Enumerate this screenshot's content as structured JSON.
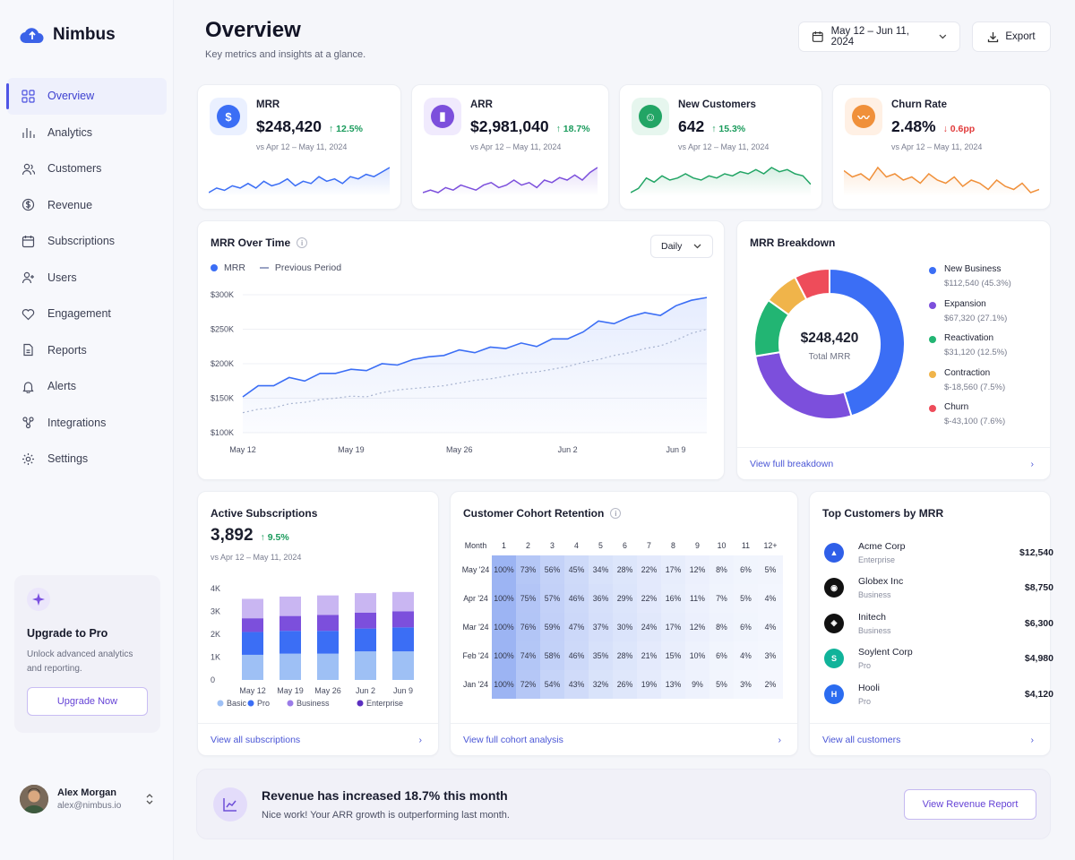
{
  "app": {
    "name": "Nimbus"
  },
  "sidebar": {
    "items": [
      {
        "label": "Overview",
        "icon": "grid-icon"
      },
      {
        "label": "Analytics",
        "icon": "bar-chart-icon"
      },
      {
        "label": "Customers",
        "icon": "users-icon"
      },
      {
        "label": "Revenue",
        "icon": "dollar-circle-icon"
      },
      {
        "label": "Subscriptions",
        "icon": "calendar-icon"
      },
      {
        "label": "Users",
        "icon": "user-plus-icon"
      },
      {
        "label": "Engagement",
        "icon": "heart-icon"
      },
      {
        "label": "Reports",
        "icon": "document-icon"
      },
      {
        "label": "Alerts",
        "icon": "bell-icon"
      },
      {
        "label": "Integrations",
        "icon": "nodes-icon"
      },
      {
        "label": "Settings",
        "icon": "gear-icon"
      }
    ],
    "active": "Overview"
  },
  "upgrade": {
    "title": "Upgrade to Pro",
    "desc": "Unlock advanced analytics and reporting.",
    "button": "Upgrade Now"
  },
  "user": {
    "name": "Alex Morgan",
    "email": "alex@nimbus.io"
  },
  "header": {
    "title": "Overview",
    "subtitle": "Key metrics and insights at a glance.",
    "date_range": "May 12 – Jun 11, 2024",
    "export": "Export"
  },
  "kpis": [
    {
      "label": "MRR",
      "value": "$248,420",
      "delta": "12.5%",
      "direction": "up",
      "period": "vs Apr 12 – May 11, 2024",
      "color": "#3b6ef5",
      "spark": [
        10,
        12,
        11,
        13,
        12,
        14,
        12,
        15,
        13,
        14,
        16,
        13,
        15,
        14,
        17,
        15,
        16,
        14,
        17,
        16,
        18,
        17,
        19,
        21
      ]
    },
    {
      "label": "ARR",
      "value": "$2,981,040",
      "delta": "18.7%",
      "direction": "up",
      "period": "vs Apr 12 – May 11, 2024",
      "color": "#7c4fdc",
      "spark": [
        12,
        13,
        12,
        14,
        13,
        15,
        14,
        13,
        15,
        16,
        14,
        15,
        17,
        15,
        16,
        14,
        17,
        16,
        18,
        17,
        19,
        17,
        20,
        22
      ]
    },
    {
      "label": "New Customers",
      "value": "642",
      "delta": "15.3%",
      "direction": "up",
      "period": "vs Apr 12 – May 11, 2024",
      "color": "#22a565",
      "spark": [
        8,
        10,
        15,
        13,
        16,
        14,
        15,
        17,
        15,
        14,
        16,
        15,
        17,
        16,
        18,
        17,
        19,
        17,
        20,
        18,
        19,
        17,
        16,
        12
      ]
    },
    {
      "label": "Churn Rate",
      "value": "2.48%",
      "delta": "0.6pp",
      "direction": "down",
      "period": "vs Apr 12 – May 11, 2024",
      "color": "#f0903a",
      "spark": [
        18,
        16,
        17,
        15,
        19,
        16,
        17,
        15,
        16,
        14,
        17,
        15,
        14,
        16,
        13,
        15,
        14,
        12,
        15,
        13,
        12,
        14,
        11,
        12
      ]
    }
  ],
  "mrr_time": {
    "title": "MRR Over Time",
    "filter": "Daily",
    "legend": [
      "MRR",
      "Previous Period"
    ]
  },
  "mrr_breakdown": {
    "title": "MRR Breakdown",
    "total": "$248,420",
    "total_label": "Total MRR",
    "items": [
      {
        "name": "New Business",
        "value": "$112,540 (45.3%)",
        "color": "#3b6ef5"
      },
      {
        "name": "Expansion",
        "value": "$67,320 (27.1%)",
        "color": "#7c4fdc"
      },
      {
        "name": "Reactivation",
        "value": "$31,120 (12.5%)",
        "color": "#22b573"
      },
      {
        "name": "Contraction",
        "value": "$-18,560 (7.5%)",
        "color": "#f0b44a"
      },
      {
        "name": "Churn",
        "value": "$-43,100 (7.6%)",
        "color": "#ee4c5a"
      }
    ],
    "link": "View full breakdown"
  },
  "subscriptions": {
    "title": "Active Subscriptions",
    "value": "3,892",
    "delta": "9.5%",
    "period": "vs Apr 12 – May 11, 2024",
    "link": "View all subscriptions"
  },
  "cohort": {
    "title": "Customer Cohort Retention",
    "header": [
      "Month",
      "1",
      "2",
      "3",
      "4",
      "5",
      "6",
      "7",
      "8",
      "9",
      "10",
      "11",
      "12+"
    ],
    "rows": [
      [
        "May '24",
        "100%",
        "73%",
        "56%",
        "45%",
        "34%",
        "28%",
        "22%",
        "17%",
        "12%",
        "8%",
        "6%",
        "5%"
      ],
      [
        "Apr '24",
        "100%",
        "75%",
        "57%",
        "46%",
        "36%",
        "29%",
        "22%",
        "16%",
        "11%",
        "7%",
        "5%",
        "4%"
      ],
      [
        "Mar '24",
        "100%",
        "76%",
        "59%",
        "47%",
        "37%",
        "30%",
        "24%",
        "17%",
        "12%",
        "8%",
        "6%",
        "4%"
      ],
      [
        "Feb '24",
        "100%",
        "74%",
        "58%",
        "46%",
        "35%",
        "28%",
        "21%",
        "15%",
        "10%",
        "6%",
        "4%",
        "3%"
      ],
      [
        "Jan '24",
        "100%",
        "72%",
        "54%",
        "43%",
        "32%",
        "26%",
        "19%",
        "13%",
        "9%",
        "5%",
        "3%",
        "2%"
      ]
    ],
    "link": "View full cohort analysis"
  },
  "top_customers": {
    "title": "Top Customers by MRR",
    "items": [
      {
        "name": "Acme Corp",
        "tier": "Enterprise",
        "value": "$12,540",
        "color": "#2f5fe8",
        "mark": "▲"
      },
      {
        "name": "Globex Inc",
        "tier": "Business",
        "value": "$8,750",
        "color": "#111111",
        "mark": "◉"
      },
      {
        "name": "Initech",
        "tier": "Business",
        "value": "$6,300",
        "color": "#111111",
        "mark": "◈"
      },
      {
        "name": "Soylent Corp",
        "tier": "Pro",
        "value": "$4,980",
        "color": "#10b39a",
        "mark": "S"
      },
      {
        "name": "Hooli",
        "tier": "Pro",
        "value": "$4,120",
        "color": "#2b6cf0",
        "mark": "H"
      }
    ],
    "link": "View all customers"
  },
  "banner": {
    "title": "Revenue has increased 18.7% this month",
    "subtitle": "Nice work! Your ARR growth is outperforming last month.",
    "button": "View Revenue Report"
  },
  "chart_data": [
    {
      "type": "line",
      "title": "MRR Over Time",
      "x": [
        "May 12",
        "May 13",
        "May 14",
        "May 15",
        "May 16",
        "May 17",
        "May 18",
        "May 19",
        "May 20",
        "May 21",
        "May 22",
        "May 23",
        "May 24",
        "May 25",
        "May 26",
        "May 27",
        "May 28",
        "May 29",
        "May 30",
        "May 31",
        "Jun 1",
        "Jun 2",
        "Jun 3",
        "Jun 4",
        "Jun 5",
        "Jun 6",
        "Jun 7",
        "Jun 8",
        "Jun 9",
        "Jun 10",
        "Jun 11"
      ],
      "x_ticks": [
        "May 12",
        "May 19",
        "May 26",
        "Jun 2",
        "Jun 9"
      ],
      "y_ticks": [
        "$100K",
        "$150K",
        "$200K",
        "$250K",
        "$300K"
      ],
      "ylim": [
        100000,
        300000
      ],
      "series": [
        {
          "name": "MRR",
          "color": "#3b6ef5",
          "values": [
            152000,
            168000,
            168000,
            180000,
            175000,
            186000,
            186000,
            192000,
            190000,
            200000,
            198000,
            206000,
            210000,
            212000,
            220000,
            216000,
            224000,
            222000,
            230000,
            225000,
            236000,
            236000,
            246000,
            262000,
            258000,
            268000,
            274000,
            270000,
            284000,
            292000,
            296000
          ]
        },
        {
          "name": "Previous Period",
          "color": "#a8b4d0",
          "values": [
            129000,
            134000,
            136000,
            142000,
            144000,
            148000,
            150000,
            153000,
            152000,
            158000,
            162000,
            164000,
            166000,
            168000,
            172000,
            176000,
            178000,
            182000,
            186000,
            188000,
            192000,
            196000,
            202000,
            206000,
            212000,
            216000,
            222000,
            226000,
            234000,
            244000,
            250000
          ]
        }
      ]
    },
    {
      "type": "pie",
      "title": "MRR Breakdown",
      "categories": [
        "New Business",
        "Expansion",
        "Reactivation",
        "Contraction",
        "Churn"
      ],
      "values": [
        45.3,
        27.1,
        12.5,
        7.5,
        7.6
      ]
    },
    {
      "type": "bar",
      "title": "Active Subscriptions",
      "categories": [
        "May 12",
        "May 19",
        "May 26",
        "Jun 2",
        "Jun 9"
      ],
      "x_ticks": [
        "May 12",
        "May 19",
        "May 26",
        "Jun 2",
        "Jun 9"
      ],
      "y_ticks": [
        "0",
        "1K",
        "2K",
        "3K",
        "4K"
      ],
      "ylim": [
        0,
        4000
      ],
      "stacked": true,
      "series": [
        {
          "name": "Basic",
          "color": "#9ec0f5",
          "values": [
            1100,
            1150,
            1150,
            1250,
            1250
          ]
        },
        {
          "name": "Pro",
          "color": "#3b6ef5",
          "values": [
            1000,
            1000,
            1000,
            1000,
            1050
          ]
        },
        {
          "name": "Business",
          "color": "#7c4fdc",
          "values": [
            600,
            650,
            700,
            700,
            700
          ]
        },
        {
          "name": "Enterprise",
          "color": "#c9b6f2",
          "values": [
            850,
            850,
            850,
            850,
            850
          ]
        }
      ],
      "legend": [
        {
          "name": "Basic",
          "color": "#9ec0f5"
        },
        {
          "name": "Pro",
          "color": "#3b6ef5"
        },
        {
          "name": "Business",
          "color": "#9b7ce8"
        },
        {
          "name": "Enterprise",
          "color": "#5b2fc0"
        }
      ]
    }
  ]
}
